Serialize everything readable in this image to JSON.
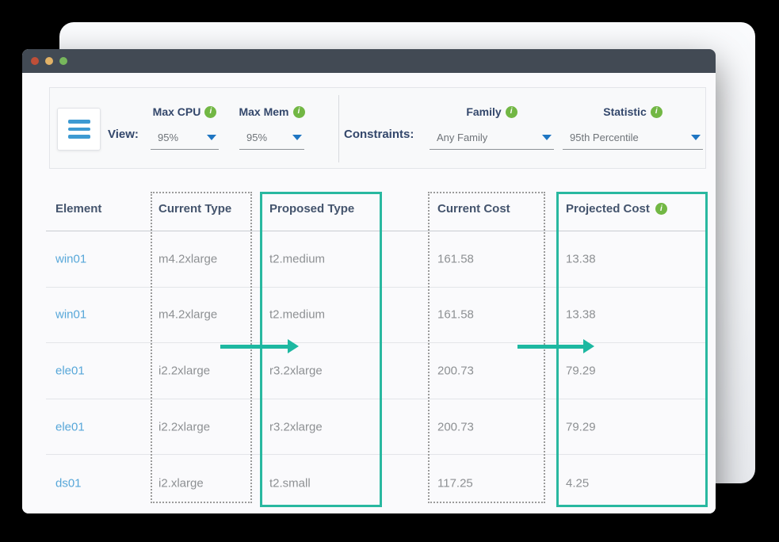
{
  "icons": {
    "info_glyph": "i"
  },
  "titlebar": {
    "dots": [
      "close",
      "minimize",
      "maximize"
    ]
  },
  "toolbar": {
    "view_label": "View:",
    "constraints_label": "Constraints:",
    "fields": [
      {
        "id": "max-cpu",
        "label": "Max CPU",
        "value": "95%"
      },
      {
        "id": "max-mem",
        "label": "Max Mem",
        "value": "95%"
      },
      {
        "id": "family",
        "label": "Family",
        "value": "Any Family"
      },
      {
        "id": "statistic",
        "label": "Statistic",
        "value": "95th Percentile"
      }
    ]
  },
  "table": {
    "columns": [
      "Element",
      "Current Type",
      "Proposed Type",
      "Current Cost",
      "Projected Cost"
    ],
    "rows": [
      {
        "element": "win01",
        "current_type": "m4.2xlarge",
        "proposed_type": "t2.medium",
        "current_cost": "161.58",
        "projected_cost": "13.38"
      },
      {
        "element": "win01",
        "current_type": "m4.2xlarge",
        "proposed_type": "t2.medium",
        "current_cost": "161.58",
        "projected_cost": "13.38"
      },
      {
        "element": "ele01",
        "current_type": "i2.2xlarge",
        "proposed_type": "r3.2xlarge",
        "current_cost": "200.73",
        "projected_cost": "79.29"
      },
      {
        "element": "ele01",
        "current_type": "i2.2xlarge",
        "proposed_type": "r3.2xlarge",
        "current_cost": "200.73",
        "projected_cost": "79.29"
      },
      {
        "element": "ds01",
        "current_type": "i2.xlarge",
        "proposed_type": "t2.small",
        "current_cost": "117.25",
        "projected_cost": "4.25"
      }
    ]
  },
  "colors": {
    "accent_teal": "#1db8a1",
    "link_blue": "#57a7d9",
    "info_green": "#72b744",
    "label_navy": "#33476b",
    "header_text": "#44546d",
    "cell_gray": "#8d9093",
    "titlebar_bg": "#424a54",
    "dot_red": "#bf4f38",
    "dot_yellow": "#e2b267",
    "dot_green": "#77b75c",
    "caret_blue": "#1f76c2",
    "hamburger_blue": "#3d9ad2"
  }
}
